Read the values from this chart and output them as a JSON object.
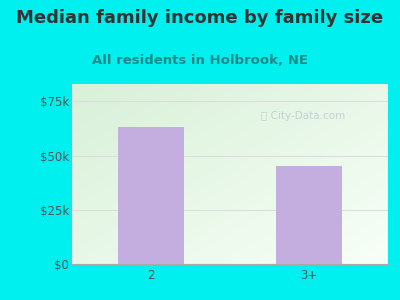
{
  "title": "Median family income by family size",
  "subtitle": "All residents in Holbrook, NE",
  "categories": [
    "2",
    "3+"
  ],
  "values": [
    63000,
    45000
  ],
  "bar_color": "#c4aee0",
  "background_color": "#00efef",
  "plot_bg_topleft": "#d8f0d8",
  "plot_bg_bottomright": "#f8fff8",
  "yticks": [
    0,
    25000,
    50000,
    75000
  ],
  "ytick_labels": [
    "$0",
    "$25k",
    "$50k",
    "$75k"
  ],
  "ylim": [
    0,
    83000
  ],
  "title_fontsize": 13,
  "subtitle_fontsize": 9.5,
  "tick_fontsize": 8.5,
  "title_color": "#333333",
  "subtitle_color": "#228888",
  "watermark_color": "#c0ccd0",
  "grid_color": "#dddddd"
}
